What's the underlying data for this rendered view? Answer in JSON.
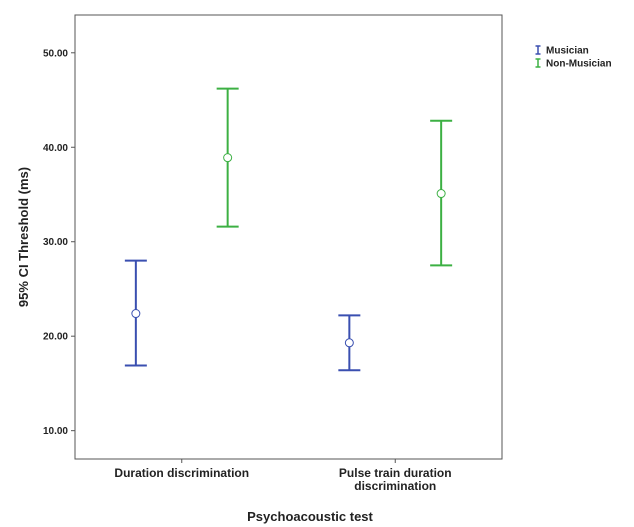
{
  "chart_data": {
    "type": "errorbar",
    "title": "",
    "xlabel": "Psychoacoustic test",
    "ylabel": "95% CI Threshold (ms)",
    "ylim": [
      7,
      54
    ],
    "yticks": [
      "10.00",
      "20.00",
      "30.00",
      "40.00",
      "50.00"
    ],
    "ytick_values": [
      10,
      20,
      30,
      40,
      50
    ],
    "categories": [
      [
        "Duration discrimination"
      ],
      [
        "Pulse train duration",
        "discrimination"
      ]
    ],
    "legend_position": "top-right",
    "grid": false,
    "series": [
      {
        "name": "Musician",
        "color": "#3a4fb0",
        "means": [
          22.4,
          19.3
        ],
        "lower": [
          16.9,
          16.4
        ],
        "upper": [
          28.0,
          22.2
        ]
      },
      {
        "name": "Non-Musician",
        "color": "#3cb043",
        "means": [
          38.9,
          35.1
        ],
        "lower": [
          31.6,
          27.5
        ],
        "upper": [
          46.2,
          42.8
        ]
      }
    ]
  }
}
